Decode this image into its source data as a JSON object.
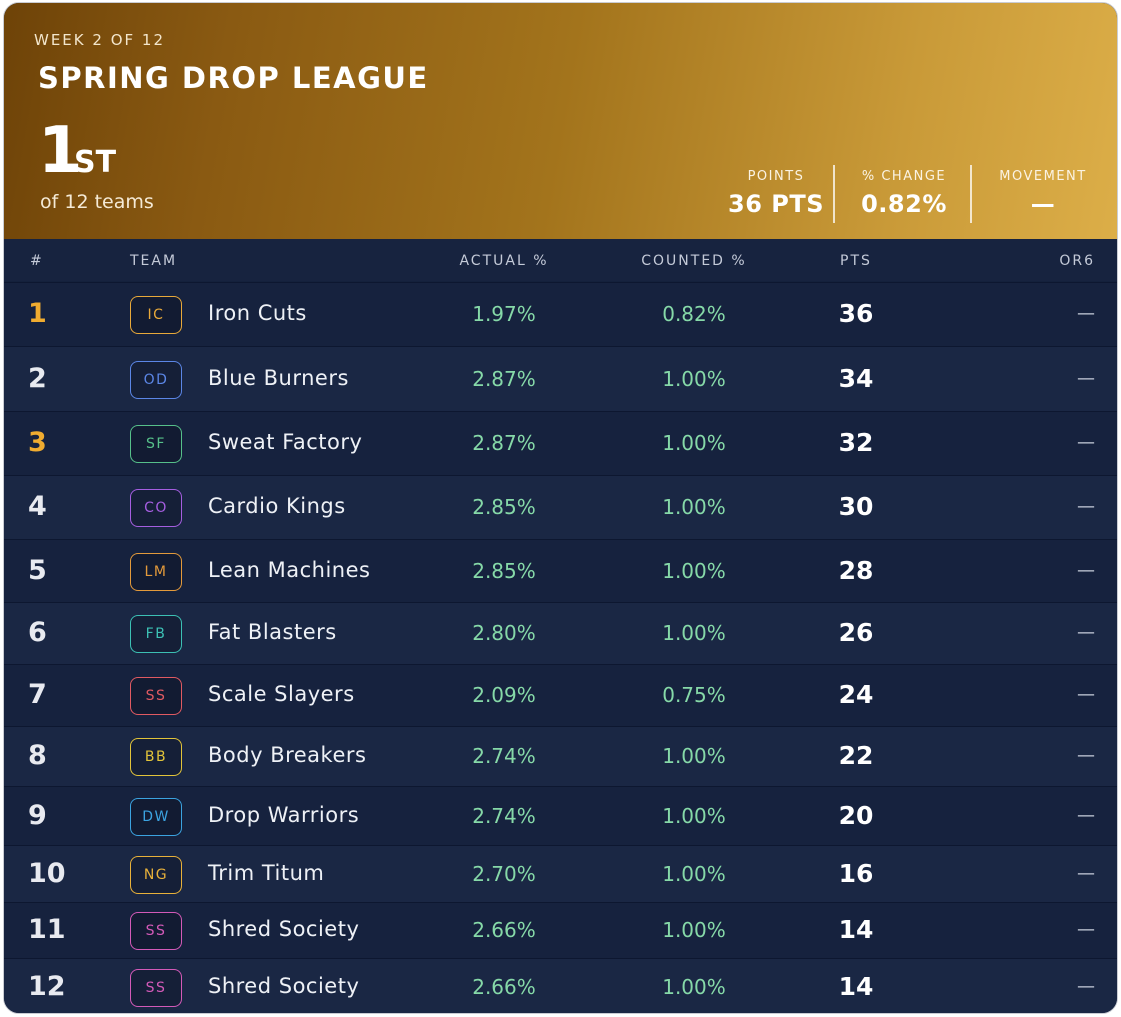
{
  "header": {
    "week": "WEEK 2 OF 12",
    "league_name": "SPRING DROP LEAGUE",
    "rank_number": "1",
    "rank_suffix": "ST",
    "of_teams": "of 12 teams",
    "stats": [
      {
        "label": "POINTS",
        "value": "36 PTS"
      },
      {
        "label": "% CHANGE",
        "value": "0.82%"
      },
      {
        "label": "MOVEMENT",
        "value": "—"
      }
    ]
  },
  "table": {
    "columns": {
      "rank": "#",
      "team": "TEAM",
      "actual": "ACTUAL %",
      "counted": "COUNTED %",
      "pts": "PTS",
      "movement": "OR6"
    },
    "rows": [
      {
        "rank": "1",
        "initials": "IC",
        "team": "Iron Cuts",
        "actual": "1.97%",
        "counted": "0.82%",
        "pts": "36",
        "movement": "—",
        "badge_color": "#e8a93a",
        "rank_color": "#f0ac30"
      },
      {
        "rank": "2",
        "initials": "OD",
        "team": "Blue Burners",
        "actual": "2.87%",
        "counted": "1.00%",
        "pts": "34",
        "movement": "—",
        "badge_color": "#5b86e6",
        "rank_color": "#e8eaf0"
      },
      {
        "rank": "3",
        "initials": "SF",
        "team": "Sweat Factory",
        "actual": "2.87%",
        "counted": "1.00%",
        "pts": "32",
        "movement": "—",
        "badge_color": "#56c08a",
        "rank_color": "#f0ac30"
      },
      {
        "rank": "4",
        "initials": "CO",
        "team": "Cardio Kings",
        "actual": "2.85%",
        "counted": "1.00%",
        "pts": "30",
        "movement": "—",
        "badge_color": "#a55ee0",
        "rank_color": "#e8eaf0"
      },
      {
        "rank": "5",
        "initials": "LM",
        "team": "Lean Machines",
        "actual": "2.85%",
        "counted": "1.00%",
        "pts": "28",
        "movement": "—",
        "badge_color": "#e39a3b",
        "rank_color": "#e8eaf0"
      },
      {
        "rank": "6",
        "initials": "FB",
        "team": "Fat Blasters",
        "actual": "2.80%",
        "counted": "1.00%",
        "pts": "26",
        "movement": "—",
        "badge_color": "#3cc0b4",
        "rank_color": "#e8eaf0"
      },
      {
        "rank": "7",
        "initials": "SS",
        "team": "Scale Slayers",
        "actual": "2.09%",
        "counted": "0.75%",
        "pts": "24",
        "movement": "—",
        "badge_color": "#e05a62",
        "rank_color": "#e8eaf0"
      },
      {
        "rank": "8",
        "initials": "BB",
        "team": "Body Breakers",
        "actual": "2.74%",
        "counted": "1.00%",
        "pts": "22",
        "movement": "—",
        "badge_color": "#e2c43a",
        "rank_color": "#e8eaf0"
      },
      {
        "rank": "9",
        "initials": "DW",
        "team": "Drop Warriors",
        "actual": "2.74%",
        "counted": "1.00%",
        "pts": "20",
        "movement": "—",
        "badge_color": "#3ba3e0",
        "rank_color": "#e8eaf0"
      },
      {
        "rank": "10",
        "initials": "NG",
        "team": "Trim Titum",
        "actual": "2.70%",
        "counted": "1.00%",
        "pts": "16",
        "movement": "—",
        "badge_color": "#e8b13a",
        "rank_color": "#e8eaf0"
      },
      {
        "rank": "11",
        "initials": "SS",
        "team": "Shred Society",
        "actual": "2.66%",
        "counted": "1.00%",
        "pts": "14",
        "movement": "—",
        "badge_color": "#d35ab8",
        "rank_color": "#e8eaf0"
      },
      {
        "rank": "12",
        "initials": "SS",
        "team": "Shred Society",
        "actual": "2.66%",
        "counted": "1.00%",
        "pts": "14",
        "movement": "—",
        "badge_color": "#d35ab8",
        "rank_color": "#e8eaf0"
      }
    ]
  }
}
